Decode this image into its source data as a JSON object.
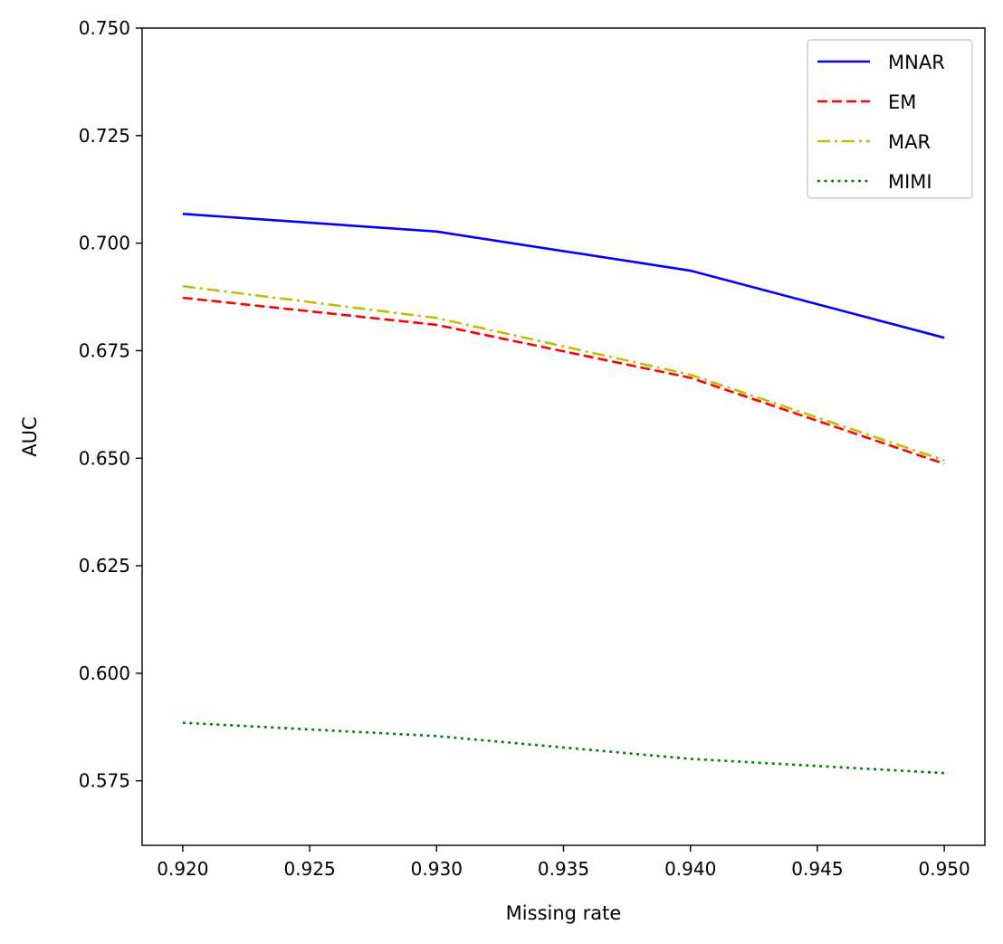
{
  "chart_data": {
    "type": "line",
    "xlabel": "Missing rate",
    "ylabel": "AUC",
    "xlim": [
      0.9184,
      0.9516
    ],
    "ylim": [
      0.56,
      0.75
    ],
    "xticks": [
      0.92,
      0.925,
      0.93,
      0.935,
      0.94,
      0.945,
      0.95
    ],
    "xtick_labels": [
      "0.920",
      "0.925",
      "0.930",
      "0.935",
      "0.940",
      "0.945",
      "0.950"
    ],
    "yticks": [
      0.575,
      0.6,
      0.625,
      0.65,
      0.675,
      0.7,
      0.725,
      0.75
    ],
    "ytick_labels": [
      "0.575",
      "0.600",
      "0.625",
      "0.650",
      "0.675",
      "0.700",
      "0.725",
      "0.750"
    ],
    "grid": false,
    "legend_position": "top-right",
    "x": [
      0.92,
      0.93,
      0.94,
      0.95
    ],
    "series": [
      {
        "name": "MNAR",
        "values": [
          0.7068,
          0.7027,
          0.6936,
          0.678
        ],
        "color": "#0000ff",
        "style": "solid"
      },
      {
        "name": "EM",
        "values": [
          0.6873,
          0.681,
          0.6687,
          0.6487
        ],
        "color": "#ff0000",
        "style": "dashed"
      },
      {
        "name": "MAR",
        "values": [
          0.69,
          0.6826,
          0.6694,
          0.6495
        ],
        "color": "#bfbf00",
        "style": "dashdot"
      },
      {
        "name": "MIMI",
        "values": [
          0.5885,
          0.5854,
          0.5801,
          0.5768
        ],
        "color": "#008000",
        "style": "dotted"
      }
    ]
  }
}
